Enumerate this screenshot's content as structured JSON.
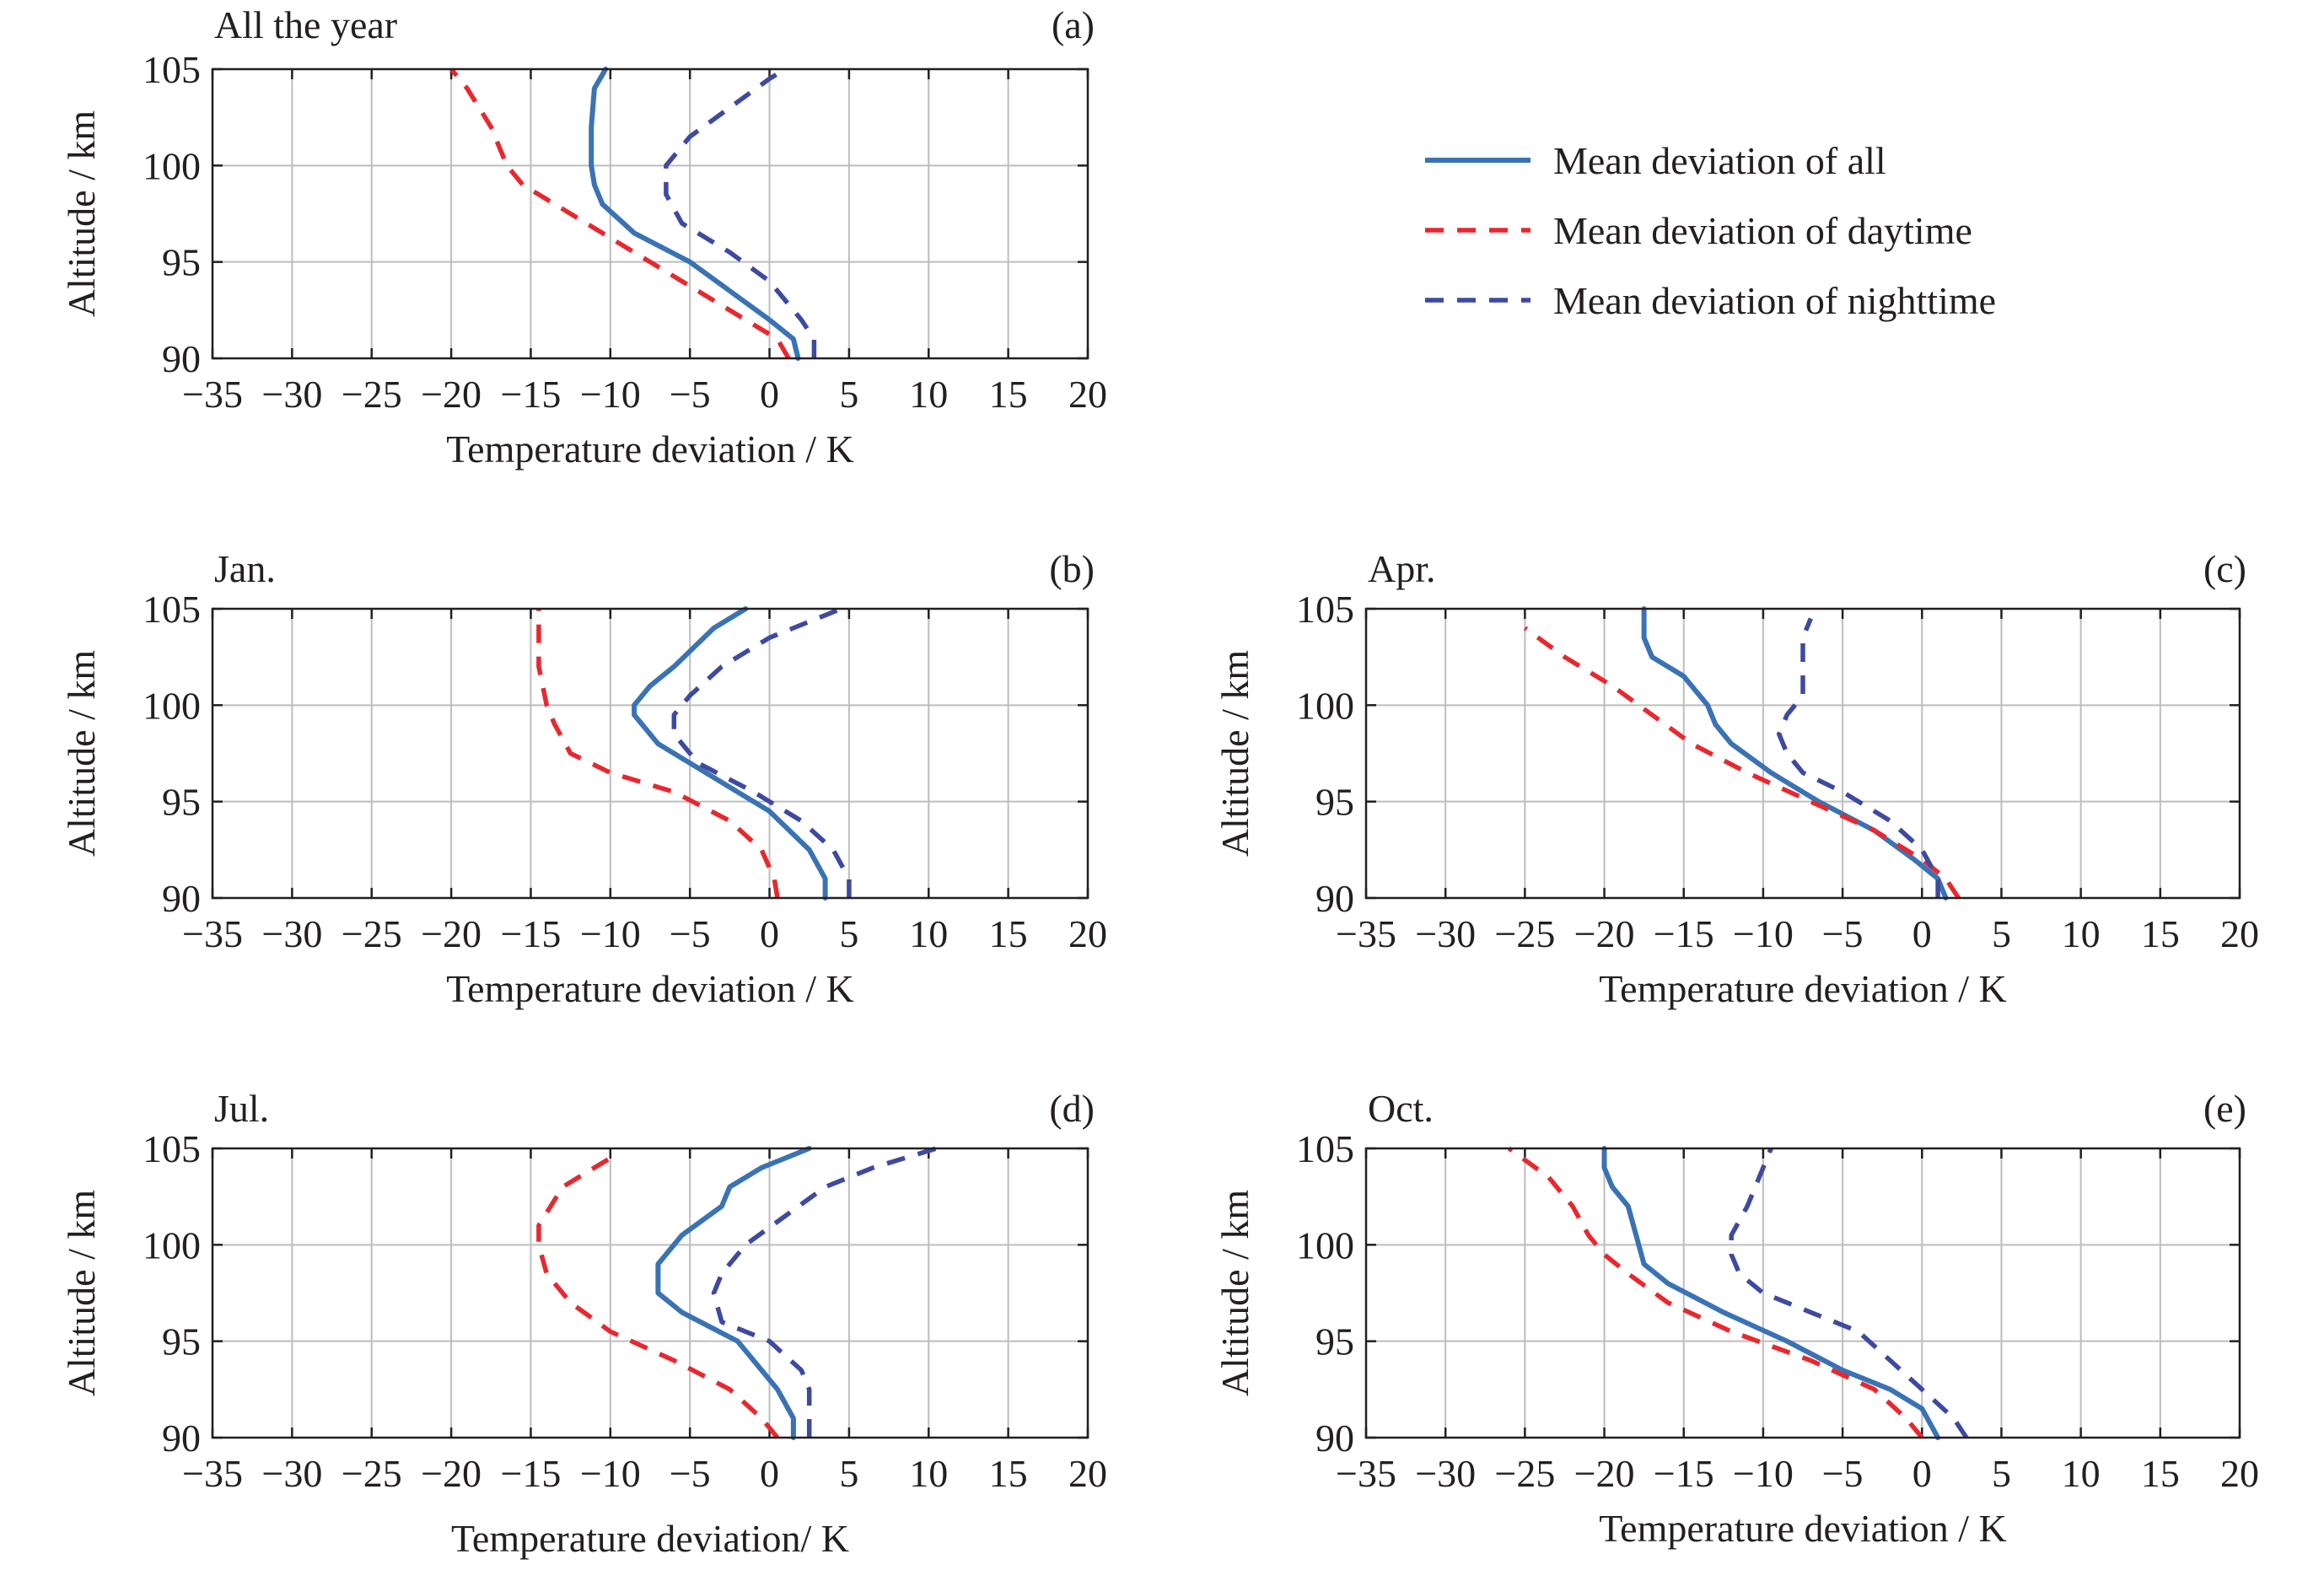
{
  "colors": {
    "all": "#3a73b4",
    "daytime": "#e8282e",
    "nighttime": "#3d4aa0",
    "grid": "#bdbdbd",
    "axis": "#231f20"
  },
  "legend": {
    "items": [
      {
        "key": "all",
        "label": "Mean deviation of all",
        "dash": "solid"
      },
      {
        "key": "daytime",
        "label": "Mean deviation of daytime",
        "dash": "dashed"
      },
      {
        "key": "nighttime",
        "label": "Mean deviation of nighttime",
        "dash": "dashed"
      }
    ]
  },
  "chart_data": [
    {
      "type": "line",
      "panel": "(a)",
      "title": "All the year",
      "xlabel": "Temperature deviation / K",
      "ylabel": "Altitude / km",
      "xlim": [
        -35,
        20
      ],
      "ylim": [
        90,
        105
      ],
      "xticks": [
        -35,
        -30,
        -25,
        -20,
        -15,
        -10,
        -5,
        0,
        5,
        10,
        15,
        20
      ],
      "yticks": [
        90,
        95,
        100,
        105
      ],
      "grid": true,
      "series": [
        {
          "name": "Mean deviation of all",
          "key": "all",
          "points": [
            [
              1.8,
              90
            ],
            [
              1.5,
              91
            ],
            [
              0,
              92
            ],
            [
              -2.5,
              93.5
            ],
            [
              -5,
              95
            ],
            [
              -8.5,
              96.5
            ],
            [
              -10.5,
              98
            ],
            [
              -11,
              99
            ],
            [
              -11.2,
              100
            ],
            [
              -11.2,
              102
            ],
            [
              -11,
              104
            ],
            [
              -10.3,
              105
            ]
          ]
        },
        {
          "name": "Mean deviation of daytime",
          "key": "daytime",
          "points": [
            [
              1.2,
              90
            ],
            [
              0.5,
              91
            ],
            [
              -1.5,
              92
            ],
            [
              -4.5,
              93.5
            ],
            [
              -7.5,
              95
            ],
            [
              -10.5,
              96.5
            ],
            [
              -13.5,
              98
            ],
            [
              -15.5,
              99
            ],
            [
              -16.5,
              100
            ],
            [
              -17.5,
              102
            ],
            [
              -19,
              104
            ],
            [
              -20,
              105
            ]
          ]
        },
        {
          "name": "Mean deviation of nighttime",
          "key": "nighttime",
          "points": [
            [
              2.8,
              90
            ],
            [
              2.8,
              91
            ],
            [
              2,
              92
            ],
            [
              0,
              94
            ],
            [
              -2.5,
              95.5
            ],
            [
              -5.5,
              97
            ],
            [
              -6.5,
              98.5
            ],
            [
              -6.5,
              100
            ],
            [
              -5,
              101.5
            ],
            [
              -2.5,
              103
            ],
            [
              0,
              104.5
            ],
            [
              1,
              105
            ]
          ]
        }
      ]
    },
    {
      "type": "line",
      "panel": "(b)",
      "title": "Jan.",
      "xlabel": "Temperature deviation / K",
      "ylabel": "Altitude / km",
      "xlim": [
        -35,
        20
      ],
      "ylim": [
        90,
        105
      ],
      "xticks": [
        -35,
        -30,
        -25,
        -20,
        -15,
        -10,
        -5,
        0,
        5,
        10,
        15,
        20
      ],
      "yticks": [
        90,
        95,
        100,
        105
      ],
      "grid": true,
      "series": [
        {
          "name": "Mean deviation of all",
          "key": "all",
          "points": [
            [
              3.5,
              90
            ],
            [
              3.5,
              91
            ],
            [
              2.5,
              92.5
            ],
            [
              0,
              94.5
            ],
            [
              -4,
              96.5
            ],
            [
              -7,
              98
            ],
            [
              -8.5,
              99.5
            ],
            [
              -8.5,
              100
            ],
            [
              -7.5,
              101
            ],
            [
              -6,
              102
            ],
            [
              -3.5,
              104
            ],
            [
              -1.5,
              105
            ]
          ]
        },
        {
          "name": "Mean deviation of daytime",
          "key": "daytime",
          "points": [
            [
              0.5,
              90
            ],
            [
              0.3,
              91
            ],
            [
              -0.5,
              92.5
            ],
            [
              -2.5,
              94
            ],
            [
              -6,
              95.5
            ],
            [
              -10,
              96.5
            ],
            [
              -12.5,
              97.5
            ],
            [
              -13.5,
              99
            ],
            [
              -14,
              100
            ],
            [
              -14.5,
              102
            ],
            [
              -14.5,
              105
            ]
          ]
        },
        {
          "name": "Mean deviation of nighttime",
          "key": "nighttime",
          "points": [
            [
              5,
              90
            ],
            [
              5,
              91
            ],
            [
              4,
              92.5
            ],
            [
              2,
              94
            ],
            [
              -1,
              95.5
            ],
            [
              -4.5,
              97
            ],
            [
              -6,
              98.5
            ],
            [
              -6,
              99.5
            ],
            [
              -5,
              100.5
            ],
            [
              -3,
              102
            ],
            [
              0,
              103.5
            ],
            [
              4.5,
              105
            ]
          ]
        }
      ]
    },
    {
      "type": "line",
      "panel": "(c)",
      "title": "Apr.",
      "xlabel": "Temperature deviation / K",
      "ylabel": "Altitude / km",
      "xlim": [
        -35,
        20
      ],
      "ylim": [
        90,
        105
      ],
      "xticks": [
        -35,
        -30,
        -25,
        -20,
        -15,
        -10,
        -5,
        0,
        5,
        10,
        15,
        20
      ],
      "yticks": [
        90,
        95,
        100,
        105
      ],
      "grid": true,
      "series": [
        {
          "name": "Mean deviation of all",
          "key": "all",
          "points": [
            [
              1.5,
              90
            ],
            [
              1,
              91
            ],
            [
              -0.5,
              92
            ],
            [
              -3,
              93.5
            ],
            [
              -6.5,
              95
            ],
            [
              -9.5,
              96.5
            ],
            [
              -12,
              98
            ],
            [
              -13,
              99
            ],
            [
              -13.5,
              100
            ],
            [
              -15,
              101.5
            ],
            [
              -17,
              102.5
            ],
            [
              -17.5,
              103.5
            ],
            [
              -17.5,
              105
            ]
          ]
        },
        {
          "name": "Mean deviation of daytime",
          "key": "daytime",
          "points": [
            [
              2.3,
              90
            ],
            [
              1.5,
              91
            ],
            [
              0,
              92
            ],
            [
              -3,
              93.5
            ],
            [
              -7,
              95
            ],
            [
              -11,
              96.5
            ],
            [
              -14.5,
              98
            ],
            [
              -17,
              99.5
            ],
            [
              -19.5,
              101
            ],
            [
              -22.5,
              102.5
            ],
            [
              -25,
              104
            ]
          ]
        },
        {
          "name": "Mean deviation of nighttime",
          "key": "nighttime",
          "points": [
            [
              1,
              90
            ],
            [
              1,
              91
            ],
            [
              0,
              92.5
            ],
            [
              -2,
              94
            ],
            [
              -5,
              95.5
            ],
            [
              -7.5,
              96.5
            ],
            [
              -8.5,
              97.5
            ],
            [
              -9,
              98.5
            ],
            [
              -8.5,
              99.5
            ],
            [
              -7.5,
              100.5
            ],
            [
              -7.5,
              102
            ],
            [
              -7.5,
              103.5
            ],
            [
              -7,
              104.5
            ]
          ]
        }
      ]
    },
    {
      "type": "line",
      "panel": "(d)",
      "title": "Jul.",
      "xlabel": "Temperature deviation/ K",
      "ylabel": "Altitude / km",
      "xlim": [
        -35,
        20
      ],
      "ylim": [
        90,
        105
      ],
      "xticks": [
        -35,
        -30,
        -25,
        -20,
        -15,
        -10,
        -5,
        0,
        5,
        10,
        15,
        20
      ],
      "yticks": [
        90,
        95,
        100,
        105
      ],
      "grid": true,
      "series": [
        {
          "name": "Mean deviation of all",
          "key": "all",
          "points": [
            [
              1.5,
              90
            ],
            [
              1.5,
              91
            ],
            [
              0.5,
              92.5
            ],
            [
              -2,
              95
            ],
            [
              -5.5,
              96.5
            ],
            [
              -7,
              97.5
            ],
            [
              -7,
              99
            ],
            [
              -5.5,
              100.5
            ],
            [
              -3,
              102
            ],
            [
              -2.5,
              103
            ],
            [
              -0.5,
              104
            ],
            [
              2.5,
              105
            ]
          ]
        },
        {
          "name": "Mean deviation of daytime",
          "key": "daytime",
          "points": [
            [
              0.5,
              90
            ],
            [
              -0.5,
              91
            ],
            [
              -2.5,
              92.5
            ],
            [
              -6,
              94
            ],
            [
              -10,
              95.5
            ],
            [
              -12.5,
              97
            ],
            [
              -14,
              98.5
            ],
            [
              -14.5,
              100
            ],
            [
              -14.5,
              101
            ],
            [
              -13,
              103
            ],
            [
              -10,
              104.5
            ]
          ]
        },
        {
          "name": "Mean deviation of nighttime",
          "key": "nighttime",
          "points": [
            [
              2.5,
              90
            ],
            [
              2.5,
              91
            ],
            [
              2.5,
              92.5
            ],
            [
              2,
              93.5
            ],
            [
              0,
              95
            ],
            [
              -3,
              96
            ],
            [
              -3.5,
              97.5
            ],
            [
              -3,
              98.5
            ],
            [
              -1.5,
              100
            ],
            [
              1,
              101.5
            ],
            [
              3.5,
              103
            ],
            [
              6.5,
              104
            ],
            [
              10.5,
              105
            ]
          ]
        }
      ]
    },
    {
      "type": "line",
      "panel": "(e)",
      "title": "Oct.",
      "xlabel": "Temperature deviation / K",
      "ylabel": "Altitude / km",
      "xlim": [
        -35,
        20
      ],
      "ylim": [
        90,
        105
      ],
      "xticks": [
        -35,
        -30,
        -25,
        -20,
        -15,
        -10,
        -5,
        0,
        5,
        10,
        15,
        20
      ],
      "yticks": [
        90,
        95,
        100,
        105
      ],
      "grid": true,
      "series": [
        {
          "name": "Mean deviation of all",
          "key": "all",
          "points": [
            [
              1,
              90
            ],
            [
              0,
              91.5
            ],
            [
              -2,
              92.5
            ],
            [
              -5,
              93.5
            ],
            [
              -8.5,
              95
            ],
            [
              -12.5,
              96.5
            ],
            [
              -16,
              98
            ],
            [
              -17.5,
              99
            ],
            [
              -18,
              100.5
            ],
            [
              -18.5,
              102
            ],
            [
              -19.5,
              103
            ],
            [
              -20,
              104
            ],
            [
              -20,
              105
            ]
          ]
        },
        {
          "name": "Mean deviation of daytime",
          "key": "daytime",
          "points": [
            [
              0,
              90
            ],
            [
              -1,
              91
            ],
            [
              -3,
              92.5
            ],
            [
              -7,
              94
            ],
            [
              -12,
              95.5
            ],
            [
              -16,
              97
            ],
            [
              -18.5,
              98.5
            ],
            [
              -20,
              99.5
            ],
            [
              -21,
              100.5
            ],
            [
              -22,
              102
            ],
            [
              -23.5,
              103.5
            ],
            [
              -26,
              105
            ]
          ]
        },
        {
          "name": "Mean deviation of nighttime",
          "key": "nighttime",
          "points": [
            [
              2.8,
              90
            ],
            [
              2,
              91
            ],
            [
              0,
              92.5
            ],
            [
              -2,
              94
            ],
            [
              -4,
              95.5
            ],
            [
              -7,
              96.5
            ],
            [
              -10,
              97.5
            ],
            [
              -11.5,
              98.5
            ],
            [
              -12,
              99.5
            ],
            [
              -12,
              100.5
            ],
            [
              -11,
              102
            ],
            [
              -10,
              104
            ],
            [
              -9.5,
              105
            ]
          ]
        }
      ]
    }
  ]
}
